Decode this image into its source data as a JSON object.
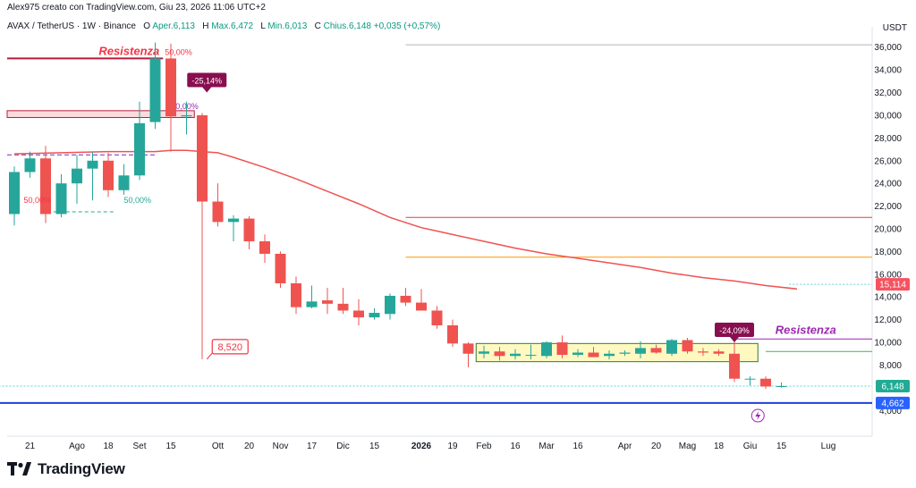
{
  "header": {
    "credit": "Alex975 creato con TradingView.com, Giu 23, 2026 11:06 UTC+2",
    "symbol": "AVAX / TetherUS · 1W · Binance",
    "o_label": "O",
    "o_value": "Aper.6,113",
    "h_label": "H",
    "h_value": "Max.6,472",
    "l_label": "L",
    "l_value": "Min.6,013",
    "c_label": "C",
    "c_value": "Chius.6,148",
    "change": "+0,035 (+0,57%)",
    "currency": "USDT"
  },
  "brand": {
    "name": "TradingView",
    "icon": "tradingview-logo-icon"
  },
  "chart_data": {
    "type": "candlestick",
    "title": "AVAX / TetherUS · 1W · Binance",
    "ylim": [
      3,
      37
    ],
    "yticks": [
      4,
      6,
      8,
      10,
      12,
      14,
      16,
      18,
      20,
      22,
      24,
      26,
      28,
      30,
      32,
      34,
      36
    ],
    "ytick_labels": [
      "4,000",
      "6,000",
      "8,000",
      "10,000",
      "12,000",
      "14,000",
      "16,000",
      "18,000",
      "20,000",
      "22,000",
      "24,000",
      "26,000",
      "28,000",
      "30,000",
      "32,000",
      "34,000",
      "36,000"
    ],
    "x_ticks": [
      {
        "week": 1,
        "label": "21",
        "bold": false
      },
      {
        "week": 4,
        "label": "Ago",
        "bold": false
      },
      {
        "week": 6,
        "label": "18",
        "bold": false
      },
      {
        "week": 8,
        "label": "Set",
        "bold": false
      },
      {
        "week": 10,
        "label": "15",
        "bold": false
      },
      {
        "week": 13,
        "label": "Ott",
        "bold": false
      },
      {
        "week": 15,
        "label": "20",
        "bold": false
      },
      {
        "week": 17,
        "label": "Nov",
        "bold": false
      },
      {
        "week": 19,
        "label": "17",
        "bold": false
      },
      {
        "week": 21,
        "label": "Dic",
        "bold": false
      },
      {
        "week": 23,
        "label": "15",
        "bold": false
      },
      {
        "week": 26,
        "label": "2026",
        "bold": true
      },
      {
        "week": 28,
        "label": "19",
        "bold": false
      },
      {
        "week": 30,
        "label": "Feb",
        "bold": false
      },
      {
        "week": 32,
        "label": "16",
        "bold": false
      },
      {
        "week": 34,
        "label": "Mar",
        "bold": false
      },
      {
        "week": 36,
        "label": "16",
        "bold": false
      },
      {
        "week": 39,
        "label": "Apr",
        "bold": false
      },
      {
        "week": 41,
        "label": "20",
        "bold": false
      },
      {
        "week": 43,
        "label": "Mag",
        "bold": false
      },
      {
        "week": 45,
        "label": "18",
        "bold": false
      },
      {
        "week": 47,
        "label": "Giu",
        "bold": false
      },
      {
        "week": 49,
        "label": "15",
        "bold": false
      },
      {
        "week": 52,
        "label": "Lug",
        "bold": false
      }
    ],
    "candles": [
      {
        "o": 21.3,
        "h": 25.5,
        "l": 20.3,
        "c": 25.0
      },
      {
        "o": 25.0,
        "h": 26.8,
        "l": 24.5,
        "c": 26.2
      },
      {
        "o": 26.2,
        "h": 27.3,
        "l": 20.5,
        "c": 21.3
      },
      {
        "o": 21.3,
        "h": 24.8,
        "l": 21.0,
        "c": 24.0
      },
      {
        "o": 24.0,
        "h": 26.5,
        "l": 22.2,
        "c": 25.3
      },
      {
        "o": 25.3,
        "h": 26.8,
        "l": 22.5,
        "c": 26.0
      },
      {
        "o": 26.0,
        "h": 26.7,
        "l": 22.8,
        "c": 23.4
      },
      {
        "o": 23.4,
        "h": 25.7,
        "l": 23.0,
        "c": 24.7
      },
      {
        "o": 24.7,
        "h": 31.2,
        "l": 24.3,
        "c": 29.3
      },
      {
        "o": 29.4,
        "h": 36.4,
        "l": 28.8,
        "c": 35.0
      },
      {
        "o": 35.0,
        "h": 36.3,
        "l": 26.8,
        "c": 29.9
      },
      {
        "o": 29.9,
        "h": 31.2,
        "l": 28.3,
        "c": 30.0
      },
      {
        "o": 30.0,
        "h": 30.2,
        "l": 8.52,
        "c": 22.4
      },
      {
        "o": 22.4,
        "h": 24.0,
        "l": 20.2,
        "c": 20.6
      },
      {
        "o": 20.6,
        "h": 21.2,
        "l": 18.9,
        "c": 20.9
      },
      {
        "o": 20.9,
        "h": 21.1,
        "l": 18.2,
        "c": 18.9
      },
      {
        "o": 18.9,
        "h": 19.5,
        "l": 17.0,
        "c": 17.8
      },
      {
        "o": 17.8,
        "h": 18.0,
        "l": 14.8,
        "c": 15.2
      },
      {
        "o": 15.2,
        "h": 15.8,
        "l": 12.5,
        "c": 13.1
      },
      {
        "o": 13.1,
        "h": 15.0,
        "l": 13.0,
        "c": 13.6
      },
      {
        "o": 13.7,
        "h": 14.8,
        "l": 12.5,
        "c": 13.4
      },
      {
        "o": 13.4,
        "h": 14.8,
        "l": 12.5,
        "c": 12.8
      },
      {
        "o": 12.8,
        "h": 13.8,
        "l": 11.5,
        "c": 12.2
      },
      {
        "o": 12.2,
        "h": 13.0,
        "l": 12.0,
        "c": 12.6
      },
      {
        "o": 12.5,
        "h": 14.3,
        "l": 12.0,
        "c": 14.1
      },
      {
        "o": 14.1,
        "h": 14.8,
        "l": 13.2,
        "c": 13.5
      },
      {
        "o": 13.5,
        "h": 14.7,
        "l": 12.8,
        "c": 12.8
      },
      {
        "o": 12.8,
        "h": 13.2,
        "l": 11.2,
        "c": 11.5
      },
      {
        "o": 11.5,
        "h": 12.0,
        "l": 9.6,
        "c": 9.9
      },
      {
        "o": 9.9,
        "h": 10.0,
        "l": 7.8,
        "c": 9.0
      },
      {
        "o": 9.0,
        "h": 9.7,
        "l": 8.6,
        "c": 9.2
      },
      {
        "o": 9.2,
        "h": 9.6,
        "l": 8.4,
        "c": 8.8
      },
      {
        "o": 8.8,
        "h": 9.4,
        "l": 8.5,
        "c": 9.0
      },
      {
        "o": 8.9,
        "h": 9.8,
        "l": 8.5,
        "c": 8.9
      },
      {
        "o": 8.8,
        "h": 10.1,
        "l": 8.6,
        "c": 10.0
      },
      {
        "o": 10.0,
        "h": 10.6,
        "l": 8.6,
        "c": 8.9
      },
      {
        "o": 8.9,
        "h": 9.4,
        "l": 8.7,
        "c": 9.1
      },
      {
        "o": 9.1,
        "h": 9.6,
        "l": 8.9,
        "c": 8.7
      },
      {
        "o": 8.8,
        "h": 9.3,
        "l": 8.5,
        "c": 9.0
      },
      {
        "o": 9.0,
        "h": 9.3,
        "l": 8.8,
        "c": 9.1
      },
      {
        "o": 9.0,
        "h": 10.1,
        "l": 8.6,
        "c": 9.5
      },
      {
        "o": 9.5,
        "h": 9.8,
        "l": 9.0,
        "c": 9.1
      },
      {
        "o": 9.0,
        "h": 10.3,
        "l": 8.8,
        "c": 10.2
      },
      {
        "o": 10.2,
        "h": 10.4,
        "l": 9.0,
        "c": 9.2
      },
      {
        "o": 9.2,
        "h": 9.5,
        "l": 8.8,
        "c": 9.1
      },
      {
        "o": 9.2,
        "h": 9.4,
        "l": 8.8,
        "c": 9.0
      },
      {
        "o": 9.0,
        "h": 10.1,
        "l": 6.5,
        "c": 6.8
      },
      {
        "o": 6.8,
        "h": 7.0,
        "l": 6.2,
        "c": 6.8
      },
      {
        "o": 6.8,
        "h": 7.0,
        "l": 5.9,
        "c": 6.113
      },
      {
        "o": 6.113,
        "h": 6.472,
        "l": 6.013,
        "c": 6.148
      }
    ],
    "ma_series": {
      "weeks": [
        0,
        3,
        6,
        9,
        10,
        11,
        12,
        13,
        14,
        16,
        18,
        20,
        22,
        24,
        26,
        28,
        30,
        32,
        34,
        36,
        38,
        40,
        42,
        44,
        46,
        48,
        50
      ],
      "values": [
        26.6,
        26.7,
        26.8,
        26.8,
        26.9,
        26.9,
        26.8,
        26.7,
        26.3,
        25.4,
        24.4,
        23.3,
        22.2,
        21.0,
        20.1,
        19.5,
        18.9,
        18.3,
        17.8,
        17.4,
        17.0,
        16.6,
        16.1,
        15.7,
        15.4,
        15.0,
        14.7
      ]
    },
    "horizontal_lines": [
      {
        "y": 36.2,
        "color": "#b2b5be",
        "from_week": 25,
        "to_week": 54,
        "width": 1
      },
      {
        "y": 21.0,
        "color": "#f23645",
        "from_week": 25,
        "to_week": 54,
        "width": 1
      },
      {
        "y": 17.5,
        "color": "#ff9800",
        "from_week": 25,
        "to_week": 54,
        "width": 1
      },
      {
        "y": 10.3,
        "color": "#9c27b0",
        "from_week": 46,
        "to_week": 54,
        "width": 1
      },
      {
        "y": 9.2,
        "color": "#4caf50",
        "from_week": 48,
        "to_week": 54,
        "width": 1
      },
      {
        "y": 15.114,
        "color": "#5dd0e0",
        "from_week": 49.5,
        "to_week": 54,
        "width": 1,
        "dash": true
      },
      {
        "y": 6.148,
        "color": "#5dd0e0",
        "from_week": -1,
        "to_week": 54,
        "width": 1,
        "dash": true
      },
      {
        "y": 4.662,
        "color": "#1e3fd7",
        "from_week": -1,
        "to_week": 54,
        "width": 2
      }
    ],
    "resistance_left": {
      "from_week": -1,
      "to_week": 9.5,
      "y": 35.0,
      "label": "Resistenza",
      "pct": "50,00%"
    },
    "zone_left": {
      "from_week": -1,
      "to_week": 11.5,
      "y_top": 30.4,
      "y_bottom": 29.8,
      "pct": "50,00%"
    },
    "dashed_left": {
      "from_week": -1,
      "to_week": 9,
      "y": 26.5
    },
    "fib_left": [
      {
        "label": "50,00%",
        "week": 0.6,
        "y": 22.3,
        "color": "#f23645"
      },
      {
        "label": "50,00%",
        "week": 7.0,
        "y": 22.3,
        "color": "#22ab94"
      }
    ],
    "dashed_left2": {
      "from_week": 2.5,
      "to_week": 6.5,
      "y": 21.5
    },
    "range_box": {
      "from_week": 29.5,
      "to_week": 47.5,
      "y_top": 9.9,
      "y_bottom": 8.3
    },
    "resistance_right": {
      "label": "Resistenza",
      "week": 48.5,
      "y": 10.9
    },
    "callouts": [
      {
        "label": "-25,14%",
        "week": 12.3,
        "y": 32.0
      },
      {
        "label": "-24,09%",
        "week": 46.0,
        "y": 10.0
      }
    ],
    "low_marker": {
      "label": "8,520",
      "week": 12.3,
      "y": 8.52
    },
    "price_badges": [
      {
        "label": "15,114",
        "y": 15.114,
        "bg": "#f7525f"
      },
      {
        "label": "6,148",
        "y": 6.148,
        "bg": "#22ab94"
      },
      {
        "label": "4,662",
        "y": 4.662,
        "bg": "#2962ff"
      }
    ],
    "lightning_week": 47.5,
    "lightning_y": 3.55
  }
}
